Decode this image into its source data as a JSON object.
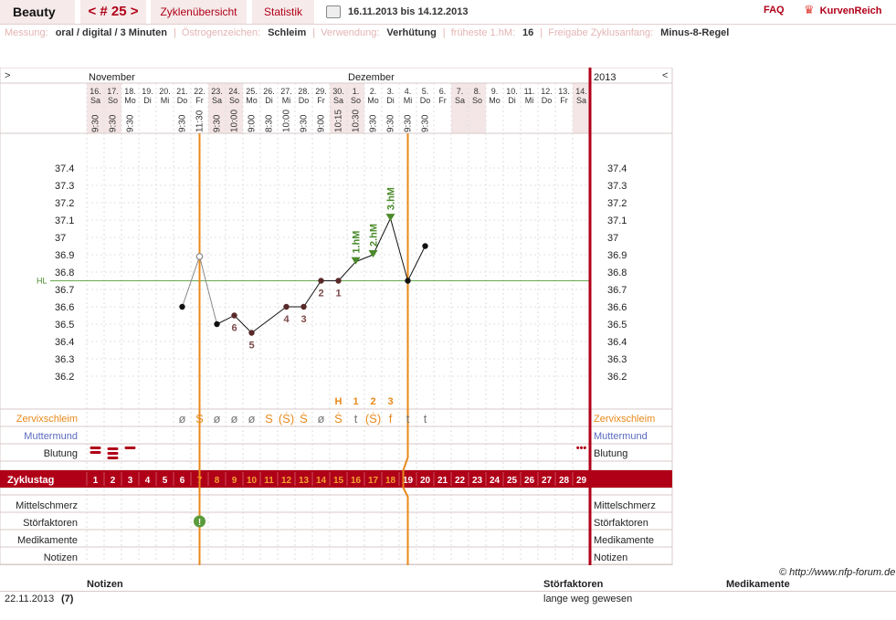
{
  "header": {
    "user_name": "Beauty",
    "cycle_number_label": "< # 25 >",
    "tabs": [
      "Zyklenübersicht",
      "Statistik"
    ],
    "date_range": "16.11.2013 bis 14.12.2013",
    "faq_label": "FAQ",
    "logo_text": "KurvenReich"
  },
  "meta": {
    "items": [
      {
        "label": "Messung:",
        "value": "oral / digital / 3 Minuten"
      },
      {
        "label": "Östrogenzeichen:",
        "value": "Schleim"
      },
      {
        "label": "Verwendung:",
        "value": "Verhütung"
      },
      {
        "label": "früheste 1.hM:",
        "value": "16"
      },
      {
        "label": "Freigabe Zyklusanfang:",
        "value": "Minus-8-Regel"
      }
    ]
  },
  "colors": {
    "accent": "#b00018",
    "orange": "#e8891a",
    "green": "#4a8a2a",
    "grid": "#d9c8c8",
    "weekend": "#f4e6e6",
    "line": "#111111",
    "gray_point": "#888888",
    "blue_label": "#5a6abf"
  },
  "chart_data": {
    "type": "line",
    "nav_left": ">",
    "nav_right": "<",
    "year_label": "2013",
    "month_labels": [
      {
        "label": "November",
        "day_index": 0
      },
      {
        "label": "Dezember",
        "day_index": 15
      }
    ],
    "days": [
      {
        "date": "16.",
        "weekday": "Sa",
        "time": "9:30",
        "weekend": true
      },
      {
        "date": "17.",
        "weekday": "So",
        "time": "9:30",
        "weekend": true
      },
      {
        "date": "18.",
        "weekday": "Mo",
        "time": "9:30",
        "weekend": false
      },
      {
        "date": "19.",
        "weekday": "Di",
        "time": "",
        "weekend": false
      },
      {
        "date": "20.",
        "weekday": "Mi",
        "time": "",
        "weekend": false
      },
      {
        "date": "21.",
        "weekday": "Do",
        "time": "9:30",
        "weekend": false
      },
      {
        "date": "22.",
        "weekday": "Fr",
        "time": "11:30",
        "weekend": false
      },
      {
        "date": "23.",
        "weekday": "Sa",
        "time": "9:30",
        "weekend": true
      },
      {
        "date": "24.",
        "weekday": "So",
        "time": "10:00",
        "weekend": true
      },
      {
        "date": "25.",
        "weekday": "Mo",
        "time": "9:00",
        "weekend": false
      },
      {
        "date": "26.",
        "weekday": "Di",
        "time": "8:30",
        "weekend": false
      },
      {
        "date": "27.",
        "weekday": "Mi",
        "time": "10:00",
        "weekend": false
      },
      {
        "date": "28.",
        "weekday": "Do",
        "time": "9:30",
        "weekend": false
      },
      {
        "date": "29.",
        "weekday": "Fr",
        "time": "9:00",
        "weekend": false
      },
      {
        "date": "30.",
        "weekday": "Sa",
        "time": "10:15",
        "weekend": true
      },
      {
        "date": "1.",
        "weekday": "So",
        "time": "10:30",
        "weekend": true
      },
      {
        "date": "2.",
        "weekday": "Mo",
        "time": "9:30",
        "weekend": false
      },
      {
        "date": "3.",
        "weekday": "Di",
        "time": "9:30",
        "weekend": false
      },
      {
        "date": "4.",
        "weekday": "Mi",
        "time": "9:30",
        "weekend": false
      },
      {
        "date": "5.",
        "weekday": "Do",
        "time": "9:30",
        "weekend": false
      },
      {
        "date": "6.",
        "weekday": "Fr",
        "time": "",
        "weekend": false
      },
      {
        "date": "7.",
        "weekday": "Sa",
        "time": "",
        "weekend": true
      },
      {
        "date": "8.",
        "weekday": "So",
        "time": "",
        "weekend": true
      },
      {
        "date": "9.",
        "weekday": "Mo",
        "time": "",
        "weekend": false
      },
      {
        "date": "10.",
        "weekday": "Di",
        "time": "",
        "weekend": false
      },
      {
        "date": "11.",
        "weekday": "Mi",
        "time": "",
        "weekend": false
      },
      {
        "date": "12.",
        "weekday": "Do",
        "time": "",
        "weekend": false
      },
      {
        "date": "13.",
        "weekday": "Fr",
        "time": "",
        "weekend": false
      },
      {
        "date": "14.",
        "weekday": "Sa",
        "time": "",
        "weekend": true
      }
    ],
    "y_ticks": [
      "37.4",
      "37.3",
      "37.2",
      "37.1",
      "37",
      "36.9",
      "36.8",
      "36.7",
      "36.6",
      "36.5",
      "36.4",
      "36.3",
      "36.2"
    ],
    "ylim": [
      36.2,
      37.4
    ],
    "hl_label": "HL",
    "hl_value": 36.75,
    "temperatures": [
      {
        "day": 6,
        "value": 36.6,
        "style": "filled"
      },
      {
        "day": 7,
        "value": 36.89,
        "style": "gray"
      },
      {
        "day": 8,
        "value": 36.5,
        "style": "filled"
      },
      {
        "day": 9,
        "value": 36.55,
        "style": "ring",
        "label": "6"
      },
      {
        "day": 10,
        "value": 36.45,
        "style": "ring",
        "label": "5"
      },
      {
        "day": 12,
        "value": 36.6,
        "style": "ring",
        "label": "4"
      },
      {
        "day": 13,
        "value": 36.6,
        "style": "ring",
        "label": "3"
      },
      {
        "day": 14,
        "value": 36.75,
        "style": "ring",
        "label": "2"
      },
      {
        "day": 15,
        "value": 36.75,
        "style": "ring",
        "label": "1"
      },
      {
        "day": 16,
        "value": 36.86,
        "style": "triangle",
        "label": "1.hM"
      },
      {
        "day": 17,
        "value": 36.9,
        "style": "triangle",
        "label": "2.hM"
      },
      {
        "day": 18,
        "value": 37.11,
        "style": "triangle",
        "label": "3.hM"
      },
      {
        "day": 19,
        "value": 36.75,
        "style": "filled"
      },
      {
        "day": 20,
        "value": 36.95,
        "style": "filled"
      }
    ],
    "line_segments": [
      {
        "from": 6,
        "to": 7,
        "style": "gray"
      },
      {
        "from": 7,
        "to": 8,
        "style": "gray"
      },
      {
        "from": 8,
        "to": 9,
        "style": "solid"
      },
      {
        "from": 9,
        "to": 10,
        "style": "solid"
      },
      {
        "from": 10,
        "to": 12,
        "style": "solid"
      },
      {
        "from": 12,
        "to": 13,
        "style": "solid"
      },
      {
        "from": 13,
        "to": 14,
        "style": "solid"
      },
      {
        "from": 14,
        "to": 15,
        "style": "solid"
      },
      {
        "from": 15,
        "to": 16,
        "style": "solid"
      },
      {
        "from": 16,
        "to": 17,
        "style": "solid"
      },
      {
        "from": 17,
        "to": 18,
        "style": "solid"
      },
      {
        "from": 18,
        "to": 19,
        "style": "solid"
      },
      {
        "from": 19,
        "to": 20,
        "style": "solid"
      }
    ],
    "vertical_lines": [
      6.5,
      18.5
    ],
    "mucus_markers": [
      {
        "day": 15,
        "label": "H"
      },
      {
        "day": 16,
        "label": "1"
      },
      {
        "day": 17,
        "label": "2"
      },
      {
        "day": 18,
        "label": "3"
      }
    ],
    "mucus": [
      "",
      "",
      "",
      "",
      "",
      "ø",
      "S",
      "ø",
      "ø",
      "ø",
      "S",
      "(Ṡ)",
      "Ṡ",
      "ø",
      "Ṡ",
      "t",
      "(Ṡ)",
      "f",
      "t",
      "t",
      "",
      "",
      "",
      "",
      "",
      "",
      "",
      "",
      ""
    ],
    "mucus_gray_days": [
      6,
      8,
      9,
      10,
      14,
      16,
      19,
      20
    ],
    "bleeding": [
      {
        "day": 1,
        "strength": "heavy"
      },
      {
        "day": 2,
        "strength": "very-heavy"
      },
      {
        "day": 3,
        "strength": "light"
      },
      {
        "day": 29,
        "strength": "spotting"
      }
    ],
    "cycle_days": [
      "1",
      "2",
      "3",
      "4",
      "5",
      "6",
      "7",
      "8",
      "9",
      "10",
      "11",
      "12",
      "13",
      "14",
      "15",
      "16",
      "17",
      "18",
      "19",
      "20",
      "21",
      "22",
      "23",
      "24",
      "25",
      "26",
      "27",
      "28",
      "29"
    ],
    "cycle_days_orange": [
      7,
      8,
      9,
      10,
      11,
      12,
      13,
      14,
      15,
      16,
      17,
      18
    ],
    "disturbance_days": [
      7
    ],
    "rows_left": {
      "mucus": "Zervixschleim",
      "cervix": "Muttermund",
      "bleeding": "Blutung",
      "cycle_day": "Zyklustag",
      "mittelschmerz": "Mittelschmerz",
      "disturbances": "Störfaktoren",
      "medication": "Medikamente",
      "notes": "Notizen"
    },
    "rows_right": [
      "Zervixschleim",
      "Muttermund",
      "Blutung",
      "Mittelschmerz",
      "Störfaktoren",
      "Medikamente",
      "Notizen"
    ]
  },
  "footer": {
    "copyright": "© http://www.nfp-forum.de",
    "col_notes": "Notizen",
    "col_disturbances": "Störfaktoren",
    "col_medication": "Medikamente",
    "row_date": "22.11.2013",
    "row_day": "(7)",
    "row_disturbance": "lange weg gewesen"
  }
}
